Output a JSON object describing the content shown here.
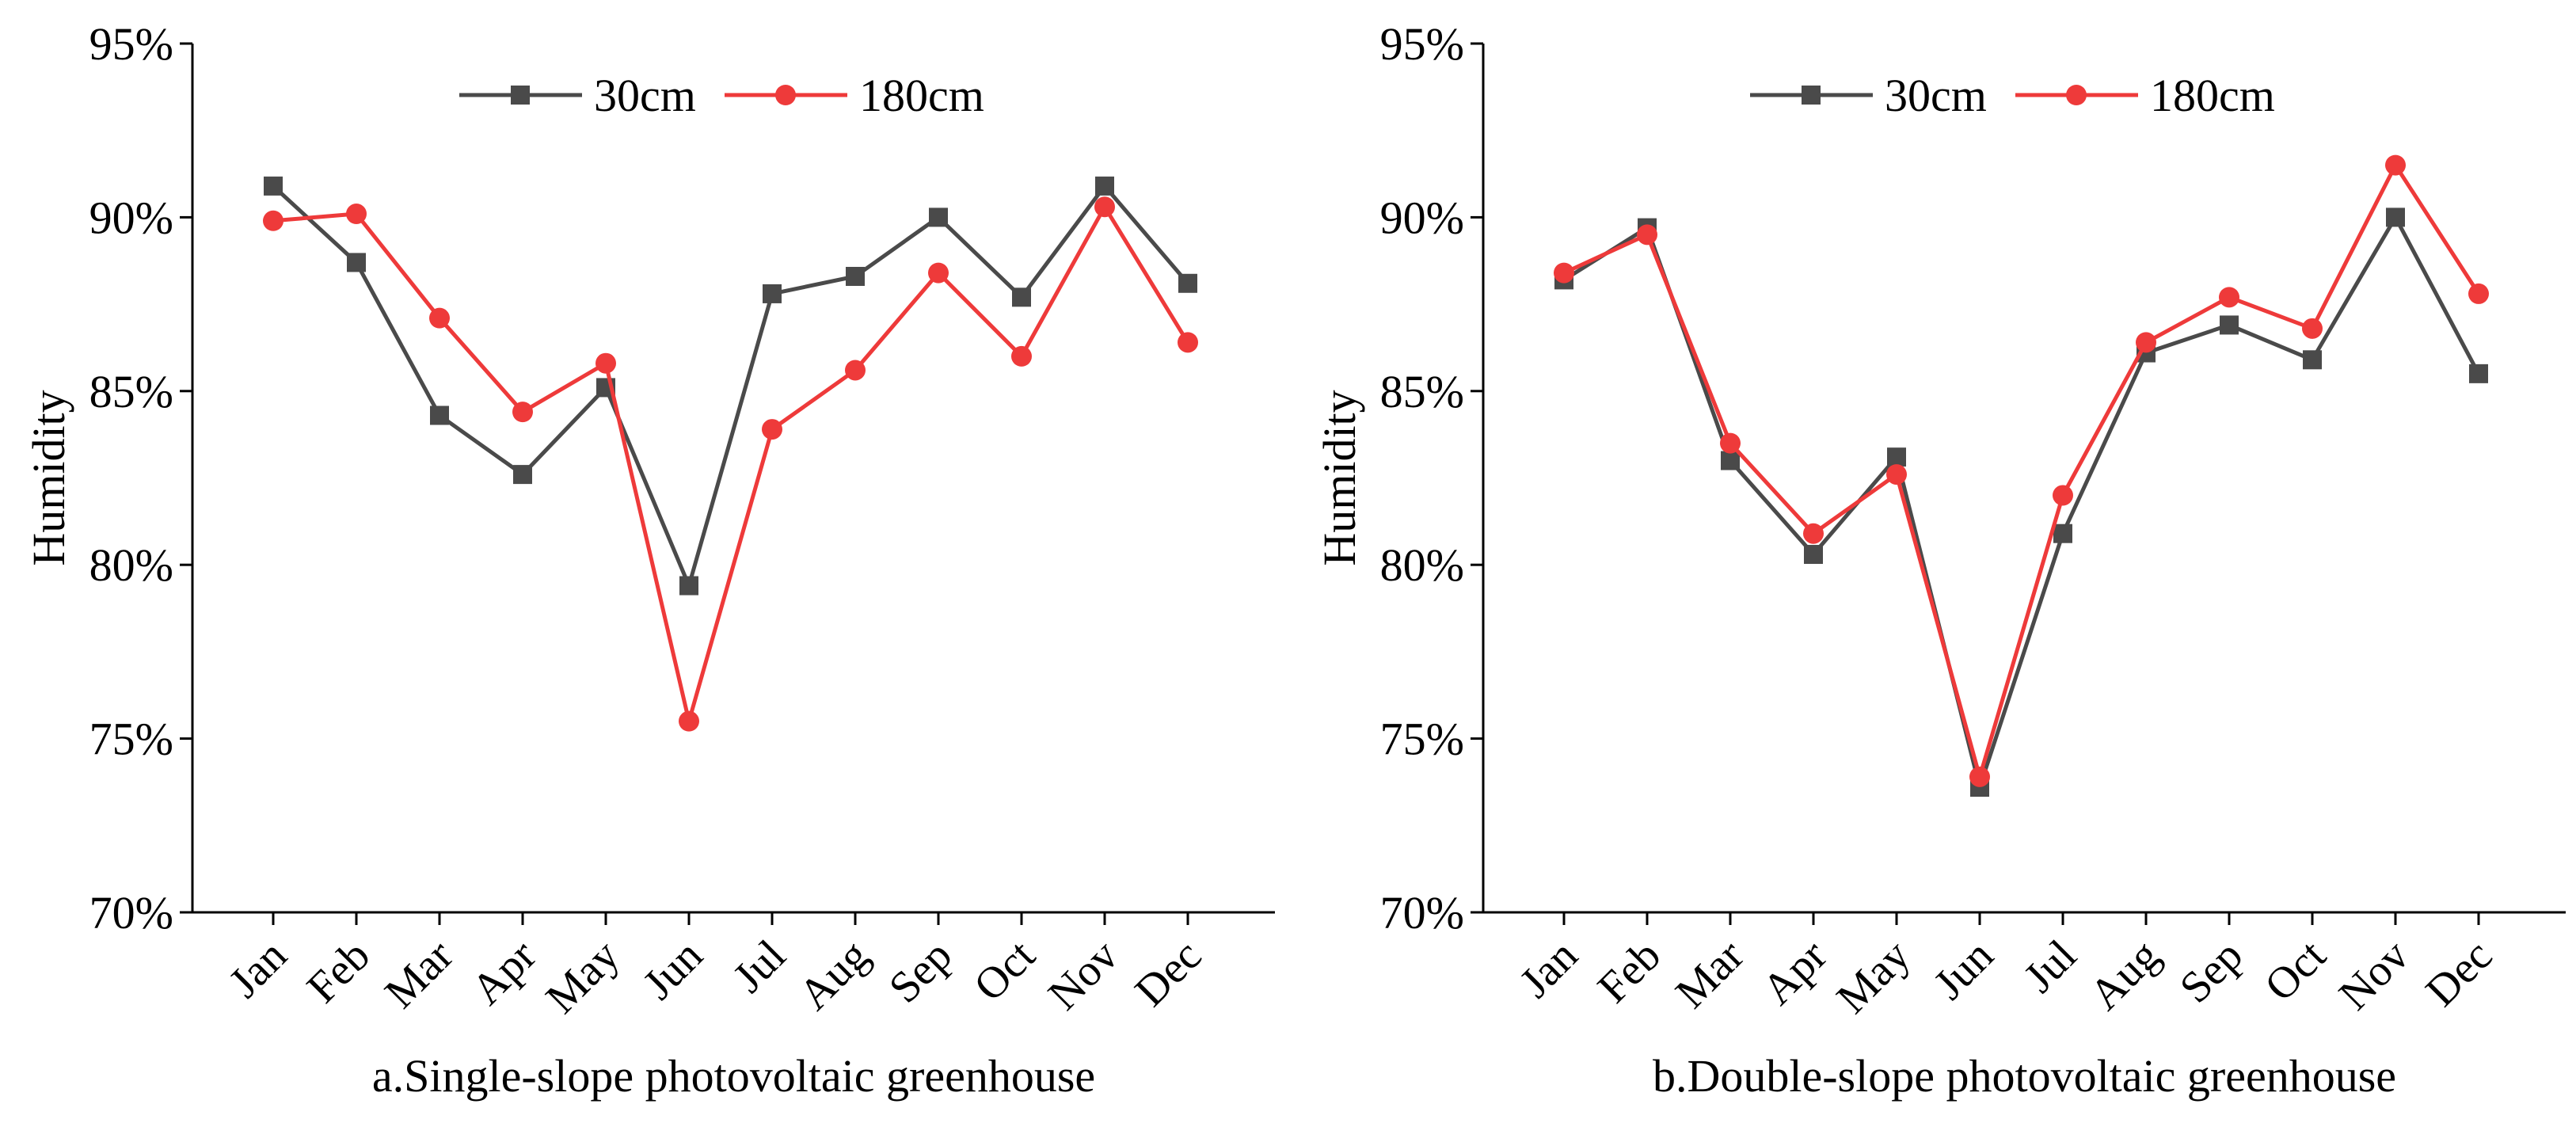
{
  "chart_data": [
    {
      "type": "line",
      "caption": "a.Single-slope photovoltaic greenhouse",
      "ylabel": "Humidity",
      "ylim": [
        70,
        95
      ],
      "yticks": [
        "70%",
        "75%",
        "80%",
        "85%",
        "90%",
        "95%"
      ],
      "categories": [
        "Jan",
        "Feb",
        "Mar",
        "Apr",
        "May",
        "Jun",
        "Jul",
        "Aug",
        "Sep",
        "Oct",
        "Nov",
        "Dec"
      ],
      "grid": false,
      "legend_position": "top-center",
      "series": [
        {
          "name": "30cm",
          "color": "#4a4a4a",
          "marker": "square",
          "values": [
            90.9,
            88.7,
            84.3,
            82.6,
            85.1,
            79.4,
            87.8,
            88.3,
            90.0,
            87.7,
            90.9,
            88.1
          ]
        },
        {
          "name": "180cm",
          "color": "#ee3a3a",
          "marker": "circle",
          "values": [
            89.9,
            90.1,
            87.1,
            84.4,
            85.8,
            75.5,
            83.9,
            85.6,
            88.4,
            86.0,
            90.3,
            86.4
          ]
        }
      ]
    },
    {
      "type": "line",
      "caption": "b.Double-slope photovoltaic greenhouse",
      "ylabel": "Humidity",
      "ylim": [
        70,
        95
      ],
      "yticks": [
        "70%",
        "75%",
        "80%",
        "85%",
        "90%",
        "95%"
      ],
      "categories": [
        "Jan",
        "Feb",
        "Mar",
        "Apr",
        "May",
        "Jun",
        "Jul",
        "Aug",
        "Sep",
        "Oct",
        "Nov",
        "Dec"
      ],
      "grid": false,
      "legend_position": "top-center",
      "series": [
        {
          "name": "30cm",
          "color": "#4a4a4a",
          "marker": "square",
          "values": [
            88.2,
            89.7,
            83.0,
            80.3,
            83.1,
            73.6,
            80.9,
            86.1,
            86.9,
            85.9,
            90.0,
            85.5
          ]
        },
        {
          "name": "180cm",
          "color": "#ee3a3a",
          "marker": "circle",
          "values": [
            88.4,
            89.5,
            83.5,
            80.9,
            82.6,
            73.9,
            82.0,
            86.4,
            87.7,
            86.8,
            91.5,
            87.8
          ]
        }
      ]
    }
  ]
}
